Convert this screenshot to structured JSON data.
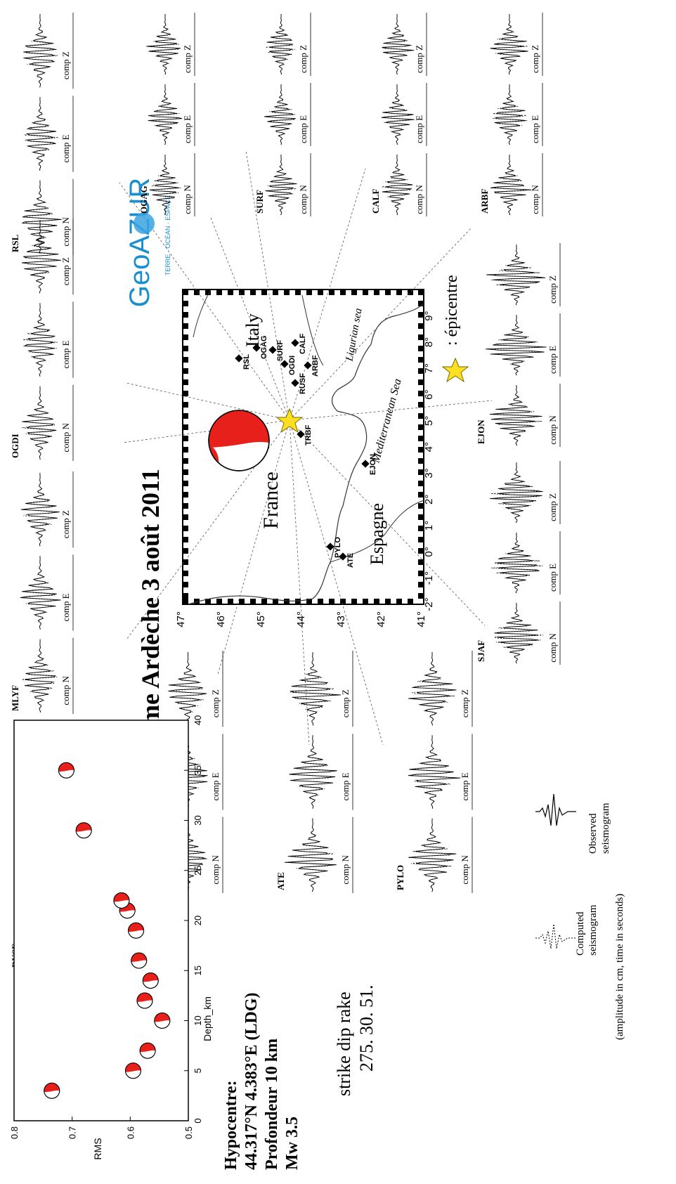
{
  "title": "Seisme Ardèche  3 août 2011",
  "logo": {
    "text": "GeoAZUR",
    "tagline": "TERRE · OCÉAN · ESPACE",
    "color": "#1a8fd0"
  },
  "hypocentre": {
    "line1": "Hypocentre:",
    "line2": "44.317°N 4.383°E (LDG)",
    "line3": "Profondeur 10 km",
    "line4": "Mw 3.5"
  },
  "mechanism": {
    "header": "strike dip rake",
    "values": "275. 30.  51."
  },
  "legend": {
    "observed": "Observed\nseismogram",
    "computed": "Computed\nseismogram",
    "units": "(amplitude in cm, time in seconds)"
  },
  "map": {
    "country_labels": [
      "France",
      "Italy",
      "Espagne"
    ],
    "sea_labels": [
      "Mediterranean Sea",
      "Ligurian sea"
    ],
    "epicentre_label": ": épicentre",
    "stations": [
      "RSL",
      "OGAG",
      "SURF",
      "CALF",
      "OGDI",
      "RUSF",
      "ARBF",
      "TRBF",
      "EJON",
      "ATE",
      "PYLO"
    ],
    "lat_ticks": [
      "47°",
      "46°",
      "45°",
      "44°",
      "43°",
      "42°",
      "41°"
    ],
    "lon_ticks": [
      "-2°",
      "-1°",
      "0°",
      "1°",
      "2°",
      "3°",
      "4°",
      "5°",
      "6°",
      "7°",
      "8°",
      "9°"
    ],
    "colors": {
      "beachball": "#e8201c",
      "star": "#ffe020"
    }
  },
  "components": [
    "comp N",
    "comp E",
    "comp Z"
  ],
  "station_panels": [
    {
      "name": "RUSF"
    },
    {
      "name": "MLYF"
    },
    {
      "name": "OGDI"
    },
    {
      "name": "RSL"
    },
    {
      "name": "OGAG"
    },
    {
      "name": "SURF"
    },
    {
      "name": "CALF"
    },
    {
      "name": "ARBF"
    },
    {
      "name": "EJON"
    },
    {
      "name": "SJAF"
    },
    {
      "name": "TRBF"
    },
    {
      "name": "ATE"
    },
    {
      "name": "PYLO"
    }
  ],
  "chart_data": {
    "type": "scatter",
    "title": "",
    "xlabel": "Depth_km",
    "ylabel": "RMS",
    "xlim": [
      0,
      40
    ],
    "ylim": [
      0.5,
      0.8
    ],
    "xticks": [
      "0",
      "5",
      "10",
      "15",
      "20",
      "25",
      "30",
      "35",
      "40"
    ],
    "yticks": [
      "0.5",
      "0.6",
      "0.7",
      "0.8"
    ],
    "x": [
      3,
      5,
      7,
      10,
      12,
      14,
      16,
      19,
      21,
      22,
      29,
      35
    ],
    "y": [
      0.735,
      0.595,
      0.57,
      0.545,
      0.575,
      0.565,
      0.585,
      0.59,
      0.605,
      0.615,
      0.68,
      0.71
    ]
  }
}
